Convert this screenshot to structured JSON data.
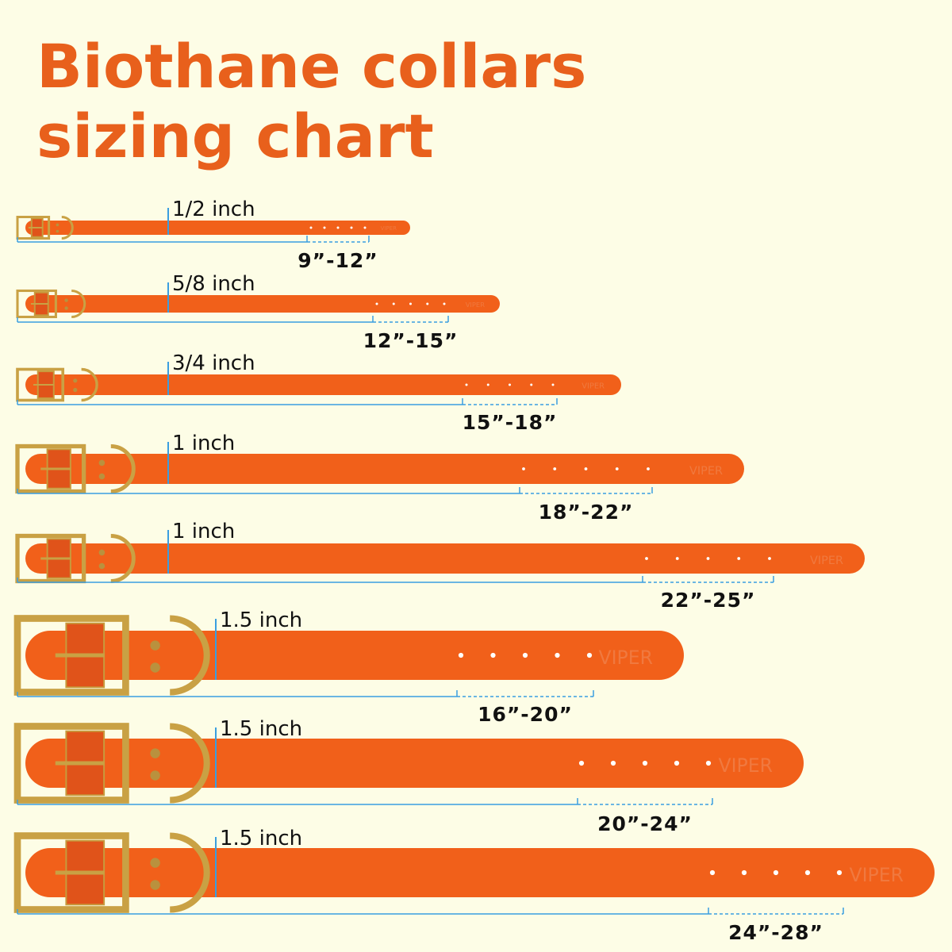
{
  "header": {
    "title_lines": [
      "Biothane collars",
      "sizing chart"
    ]
  },
  "strap_mark": "VIPER",
  "collars": [
    {
      "width": "1/2 inch",
      "size_range": "9”-12”"
    },
    {
      "width": "5/8 inch",
      "size_range": "12”-15”"
    },
    {
      "width": "3/4 inch",
      "size_range": "15”-18”"
    },
    {
      "width": "1 inch",
      "size_range": "18”-22”"
    },
    {
      "width": "1 inch",
      "size_range": "22”-25”"
    },
    {
      "width": "1.5 inch",
      "size_range": "16”-20”"
    },
    {
      "width": "1.5 inch",
      "size_range": "20”-24”"
    },
    {
      "width": "1.5 inch",
      "size_range": "24”-28”"
    }
  ]
}
